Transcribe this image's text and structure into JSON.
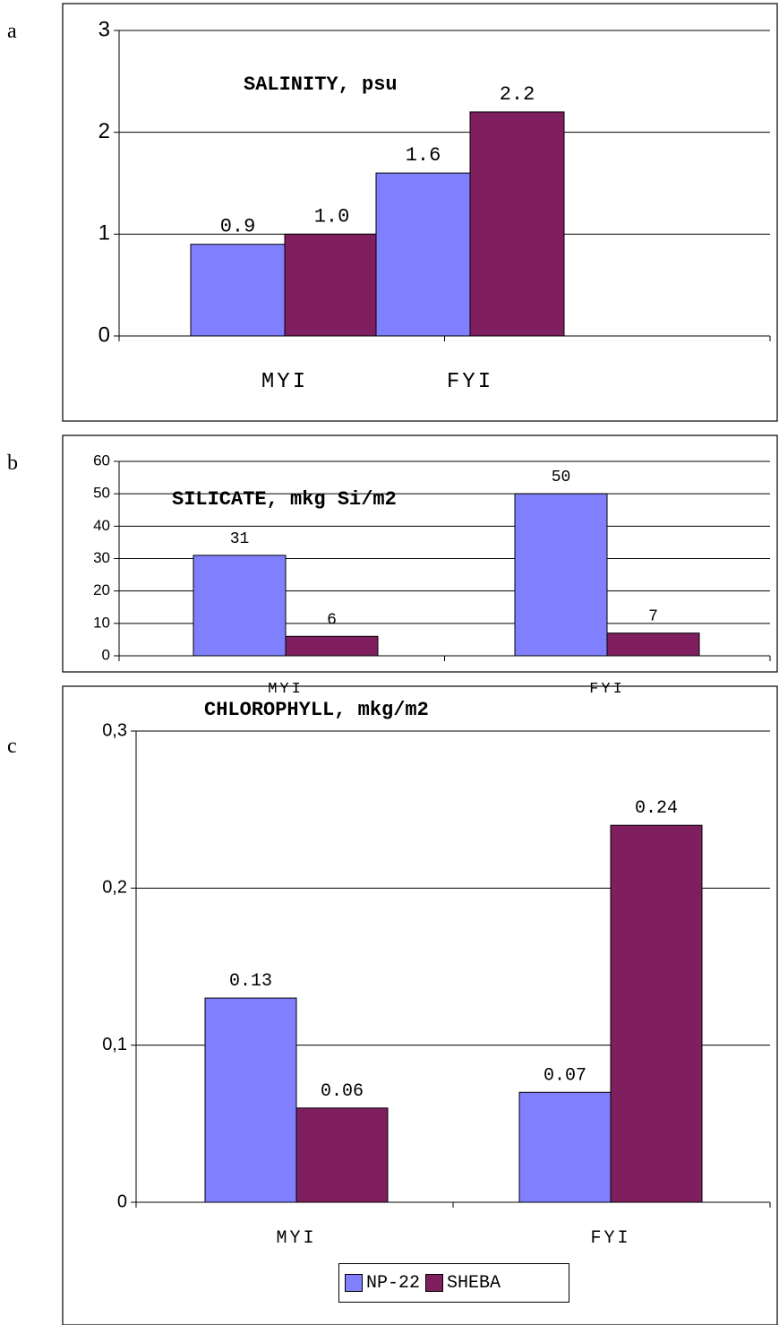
{
  "colors": {
    "np22": "#8080ff",
    "sheba": "#7f1f5f"
  },
  "legend": {
    "np22_label": "NP-22",
    "sheba_label": "SHEBA"
  },
  "panels": [
    {
      "letter": "a",
      "title": "SALINITY, psu"
    },
    {
      "letter": "b",
      "title": "SILICATE, mkg Si/m2"
    },
    {
      "letter": "c",
      "title": "CHLOROPHYLL, mkg/m2"
    }
  ],
  "chart_data": [
    {
      "type": "bar",
      "title": "SALINITY, psu",
      "categories": [
        "MYI",
        "FYI"
      ],
      "series": [
        {
          "name": "NP-22",
          "values": [
            0.9,
            1.6
          ]
        },
        {
          "name": "SHEBA",
          "values": [
            1.0,
            2.2
          ]
        }
      ],
      "data_labels": [
        [
          "0.9",
          "1.0"
        ],
        [
          "1.6",
          "2.2"
        ]
      ],
      "yticks": [
        "0",
        "1",
        "2",
        "3"
      ],
      "ylim": [
        0,
        3
      ],
      "grid": true,
      "legend": "none"
    },
    {
      "type": "bar",
      "title": "SILICATE, mkg Si/m2",
      "categories": [
        "MYI",
        "FYI"
      ],
      "series": [
        {
          "name": "NP-22",
          "values": [
            31,
            50
          ]
        },
        {
          "name": "SHEBA",
          "values": [
            6,
            7
          ]
        }
      ],
      "data_labels": [
        [
          "31",
          "6"
        ],
        [
          "50",
          "7"
        ]
      ],
      "yticks": [
        "0",
        "10",
        "20",
        "30",
        "40",
        "50",
        "60"
      ],
      "ylim": [
        0,
        60
      ],
      "grid": true,
      "legend": "none"
    },
    {
      "type": "bar",
      "title": "CHLOROPHYLL, mkg/m2",
      "categories": [
        "MYI",
        "FYI"
      ],
      "series": [
        {
          "name": "NP-22",
          "values": [
            0.13,
            0.07
          ]
        },
        {
          "name": "SHEBA",
          "values": [
            0.06,
            0.24
          ]
        }
      ],
      "data_labels": [
        [
          "0.13",
          "0.06"
        ],
        [
          "0.07",
          "0.24"
        ]
      ],
      "yticks": [
        "0",
        "0,1",
        "0,2",
        "0,3"
      ],
      "ylim": [
        0,
        0.3
      ],
      "grid": true,
      "legend": "bottom"
    }
  ]
}
